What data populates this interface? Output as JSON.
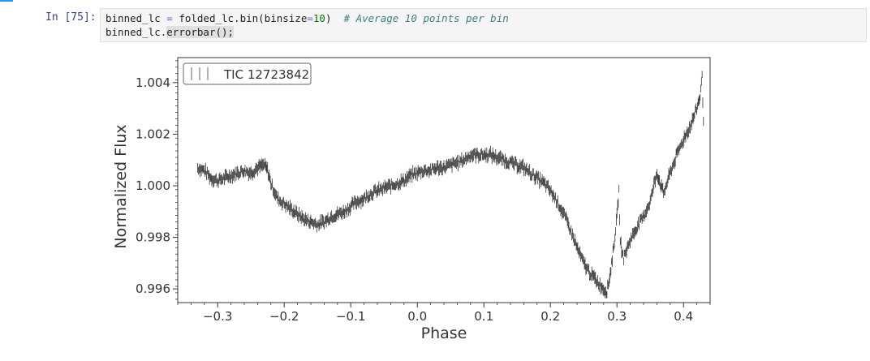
{
  "cell": {
    "prompt": "In [75]:",
    "code": {
      "line1": {
        "a": "binned_lc ",
        "op1": "=",
        "b": " folded_lc.bin(binsize",
        "op2": "=",
        "num": "10",
        "c": ")  ",
        "comment": "# Average 10 points per bin"
      },
      "line2": {
        "a": "binned_lc.",
        "hl": "errorbar();"
      }
    }
  },
  "chart_data": {
    "type": "scatter",
    "style": "errorbar",
    "title": "",
    "xlabel": "Phase",
    "ylabel": "Normalized Flux",
    "xlim": [
      -0.36,
      0.44
    ],
    "ylim": [
      0.99547,
      1.00497
    ],
    "xticks": [
      -0.3,
      -0.2,
      -0.1,
      0.0,
      0.1,
      0.2,
      0.3,
      0.4
    ],
    "xtick_labels": [
      "−0.3",
      "−0.2",
      "−0.1",
      "0.0",
      "0.1",
      "0.2",
      "0.3",
      "0.4"
    ],
    "yticks": [
      0.996,
      0.998,
      1.0,
      1.002,
      1.004
    ],
    "ytick_labels": [
      "0.996",
      "0.998",
      "1.000",
      "1.002",
      "1.004"
    ],
    "grid": false,
    "legend_position": "top-left",
    "series": [
      {
        "name": "TIC 12723842",
        "color": "#333333",
        "x": [
          -0.33,
          -0.32,
          -0.31,
          -0.3,
          -0.29,
          -0.28,
          -0.27,
          -0.26,
          -0.25,
          -0.24,
          -0.23,
          -0.225,
          -0.22,
          -0.21,
          -0.2,
          -0.19,
          -0.18,
          -0.17,
          -0.16,
          -0.15,
          -0.14,
          -0.13,
          -0.12,
          -0.11,
          -0.1,
          -0.09,
          -0.08,
          -0.07,
          -0.06,
          -0.05,
          -0.04,
          -0.03,
          -0.02,
          -0.01,
          0.0,
          0.01,
          0.02,
          0.03,
          0.04,
          0.05,
          0.06,
          0.07,
          0.08,
          0.09,
          0.1,
          0.11,
          0.12,
          0.13,
          0.14,
          0.15,
          0.16,
          0.17,
          0.18,
          0.19,
          0.2,
          0.21,
          0.22,
          0.23,
          0.24,
          0.25,
          0.26,
          0.27,
          0.28,
          0.285,
          0.29,
          0.295,
          0.3,
          0.303,
          0.305,
          0.31,
          0.32,
          0.33,
          0.34,
          0.35,
          0.36,
          0.365,
          0.37,
          0.38,
          0.39,
          0.4,
          0.41,
          0.42,
          0.425,
          0.428,
          0.43
        ],
        "y": [
          1.0007,
          1.0006,
          1.0003,
          1.0002,
          1.0003,
          1.0004,
          1.0005,
          1.0006,
          1.0005,
          1.0007,
          1.0008,
          1.0006,
          1.0001,
          0.9995,
          0.9993,
          0.9991,
          0.9989,
          0.9987,
          0.9986,
          0.9985,
          0.9986,
          0.9988,
          0.9989,
          0.999,
          0.9992,
          0.9994,
          0.9995,
          0.9997,
          0.9998,
          0.9999,
          1.0,
          1.0001,
          1.0002,
          1.0004,
          1.0005,
          1.0006,
          1.0006,
          1.0007,
          1.0007,
          1.0008,
          1.0009,
          1.001,
          1.0012,
          1.0012,
          1.0012,
          1.0012,
          1.0011,
          1.001,
          1.0009,
          1.0008,
          1.0007,
          1.0005,
          1.0003,
          1.0001,
          0.9998,
          0.9994,
          0.9989,
          0.9983,
          0.9976,
          0.997,
          0.9966,
          0.9963,
          0.996,
          0.9959,
          0.9966,
          0.9976,
          0.9988,
          0.9998,
          0.9978,
          0.9972,
          0.9979,
          0.9984,
          0.9988,
          0.9994,
          1.0005,
          1.0001,
          0.9997,
          1.0005,
          1.0012,
          1.0018,
          1.0023,
          1.003,
          1.0035,
          1.0042,
          1.0025
        ],
        "yerr": 0.00018
      }
    ]
  }
}
